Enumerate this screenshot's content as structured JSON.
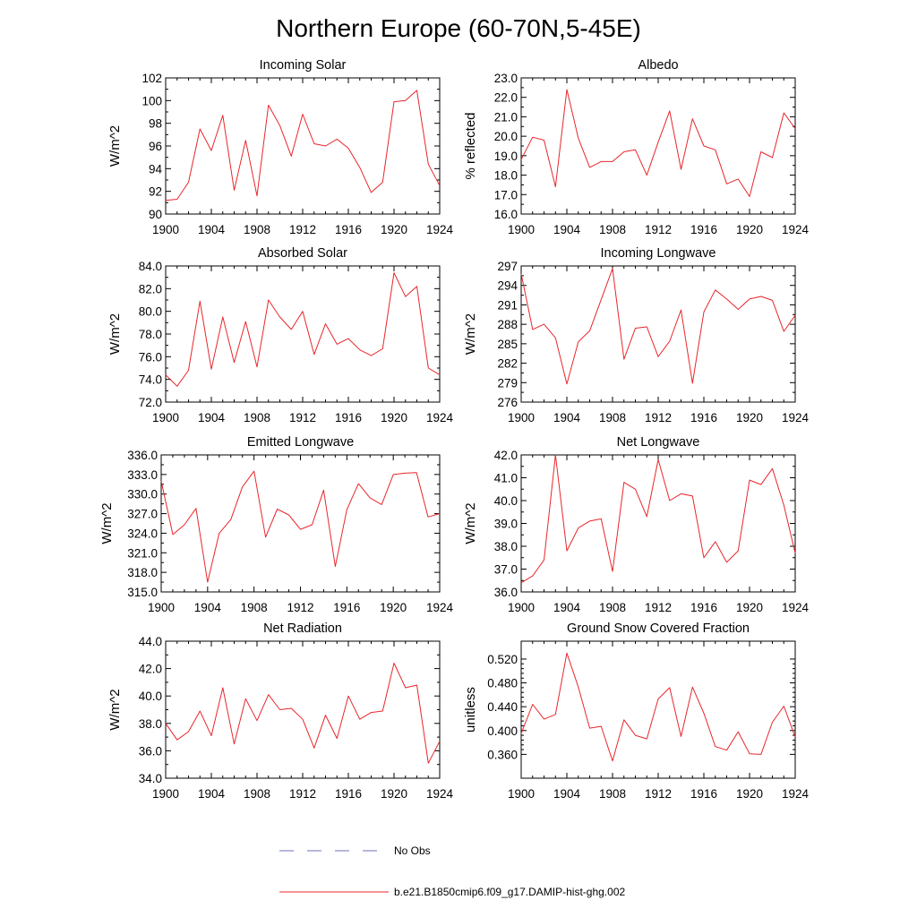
{
  "title": "Northern Europe (60-70N,5-45E)",
  "colors": {
    "model": "#e8262b",
    "obs": "#6b70b8",
    "axis": "#000000"
  },
  "legend": [
    {
      "label": "No Obs",
      "style": "dashed",
      "color": "#6b70b8"
    },
    {
      "label": "b.e21.B1850cmip6.f09_g17.DAMIP-hist-ghg.002",
      "style": "solid",
      "color": "#e8262b"
    }
  ],
  "chart_data": [
    {
      "type": "line",
      "title": "Incoming Solar",
      "ylabel": "W/m^2",
      "ylim": [
        90,
        102
      ],
      "yticks": [
        "90",
        "92",
        "94",
        "96",
        "98",
        "100",
        "102"
      ],
      "xlim": [
        1900,
        1924
      ],
      "xticks": [
        "1900",
        "1904",
        "1908",
        "1912",
        "1916",
        "1920",
        "1924"
      ],
      "x": [
        1900,
        1901,
        1902,
        1903,
        1904,
        1905,
        1906,
        1907,
        1908,
        1909,
        1910,
        1911,
        1912,
        1913,
        1914,
        1915,
        1916,
        1917,
        1918,
        1919,
        1920,
        1921,
        1922,
        1923,
        1924
      ],
      "series": [
        {
          "values": [
            91.2,
            91.3,
            92.8,
            97.5,
            95.6,
            98.7,
            92.1,
            96.5,
            91.6,
            99.6,
            97.8,
            95.1,
            98.8,
            96.2,
            96.0,
            96.6,
            95.8,
            94.1,
            91.9,
            92.8,
            99.9,
            100.0,
            100.9,
            94.4,
            92.5
          ]
        }
      ]
    },
    {
      "type": "line",
      "title": "Albedo",
      "ylabel": "% reflected",
      "ylim": [
        16,
        23
      ],
      "yticks": [
        "16.0",
        "17.0",
        "18.0",
        "19.0",
        "20.0",
        "21.0",
        "22.0",
        "23.0"
      ],
      "xlim": [
        1900,
        1924
      ],
      "xticks": [
        "1900",
        "1904",
        "1908",
        "1912",
        "1916",
        "1920",
        "1924"
      ],
      "x": [
        1900,
        1901,
        1902,
        1903,
        1904,
        1905,
        1906,
        1907,
        1908,
        1909,
        1910,
        1911,
        1912,
        1913,
        1914,
        1915,
        1916,
        1917,
        1918,
        1919,
        1920,
        1921,
        1922,
        1923,
        1924
      ],
      "series": [
        {
          "values": [
            18.8,
            19.95,
            19.8,
            17.4,
            22.4,
            19.9,
            18.4,
            18.7,
            18.7,
            19.2,
            19.3,
            18.0,
            19.7,
            21.3,
            18.3,
            20.9,
            19.5,
            19.3,
            17.55,
            17.8,
            16.9,
            19.2,
            18.9,
            21.2,
            20.4
          ]
        }
      ]
    },
    {
      "type": "line",
      "title": "Absorbed Solar",
      "ylabel": "W/m^2",
      "ylim": [
        72,
        84
      ],
      "yticks": [
        "72.0",
        "74.0",
        "76.0",
        "78.0",
        "80.0",
        "82.0",
        "84.0"
      ],
      "xlim": [
        1900,
        1924
      ],
      "xticks": [
        "1900",
        "1904",
        "1908",
        "1912",
        "1916",
        "1920",
        "1924"
      ],
      "x": [
        1900,
        1901,
        1902,
        1903,
        1904,
        1905,
        1906,
        1907,
        1908,
        1909,
        1910,
        1911,
        1912,
        1913,
        1914,
        1915,
        1916,
        1917,
        1918,
        1919,
        1920,
        1921,
        1922,
        1923,
        1924
      ],
      "series": [
        {
          "values": [
            74.4,
            73.4,
            74.8,
            80.9,
            74.9,
            79.5,
            75.5,
            79.1,
            75.1,
            81.0,
            79.5,
            78.4,
            80.0,
            76.2,
            78.9,
            77.1,
            77.6,
            76.6,
            76.1,
            76.7,
            83.4,
            81.3,
            82.2,
            75.0,
            74.4
          ]
        }
      ]
    },
    {
      "type": "line",
      "title": "Incoming Longwave",
      "ylabel": "W/m^2",
      "ylim": [
        276,
        297
      ],
      "yticks": [
        "276",
        "279",
        "282",
        "285",
        "288",
        "291",
        "294",
        "297"
      ],
      "xlim": [
        1900,
        1924
      ],
      "xticks": [
        "1900",
        "1904",
        "1908",
        "1912",
        "1916",
        "1920",
        "1924"
      ],
      "x": [
        1900,
        1901,
        1902,
        1903,
        1904,
        1905,
        1906,
        1907,
        1908,
        1909,
        1910,
        1911,
        1912,
        1913,
        1914,
        1915,
        1916,
        1917,
        1918,
        1919,
        1920,
        1921,
        1922,
        1923,
        1924
      ],
      "series": [
        {
          "values": [
            295.8,
            287.2,
            288.0,
            285.9,
            278.8,
            285.3,
            287.0,
            291.8,
            296.6,
            282.6,
            287.4,
            287.6,
            283.0,
            285.4,
            290.2,
            278.9,
            289.9,
            293.3,
            291.9,
            290.3,
            291.9,
            292.3,
            291.7,
            286.9,
            289.4
          ]
        }
      ]
    },
    {
      "type": "line",
      "title": "Emitted Longwave",
      "ylabel": "W/m^2",
      "ylim": [
        315,
        336
      ],
      "yticks": [
        "315.0",
        "318.0",
        "321.0",
        "324.0",
        "327.0",
        "330.0",
        "333.0",
        "336.0"
      ],
      "xlim": [
        1900,
        1924
      ],
      "xticks": [
        "1900",
        "1904",
        "1908",
        "1912",
        "1916",
        "1920",
        "1924"
      ],
      "x": [
        1900,
        1901,
        1902,
        1903,
        1904,
        1905,
        1906,
        1907,
        1908,
        1909,
        1910,
        1911,
        1912,
        1913,
        1914,
        1915,
        1916,
        1917,
        1918,
        1919,
        1920,
        1921,
        1922,
        1923,
        1924
      ],
      "series": [
        {
          "values": [
            332.0,
            323.8,
            325.3,
            327.8,
            316.5,
            324.0,
            326.1,
            331.1,
            333.5,
            323.4,
            327.7,
            326.8,
            324.6,
            325.3,
            330.6,
            318.9,
            327.6,
            331.6,
            329.4,
            328.4,
            333.0,
            333.2,
            333.3,
            326.5,
            327.0
          ]
        }
      ]
    },
    {
      "type": "line",
      "title": "Net Longwave",
      "ylabel": "W/m^2",
      "ylim": [
        36,
        42
      ],
      "yticks": [
        "36.0",
        "37.0",
        "38.0",
        "39.0",
        "40.0",
        "41.0",
        "42.0"
      ],
      "xlim": [
        1900,
        1924
      ],
      "xticks": [
        "1900",
        "1904",
        "1908",
        "1912",
        "1916",
        "1920",
        "1924"
      ],
      "x": [
        1900,
        1901,
        1902,
        1903,
        1904,
        1905,
        1906,
        1907,
        1908,
        1909,
        1910,
        1911,
        1912,
        1913,
        1914,
        1915,
        1916,
        1917,
        1918,
        1919,
        1920,
        1921,
        1922,
        1923,
        1924
      ],
      "series": [
        {
          "values": [
            36.4,
            36.7,
            37.4,
            42.0,
            37.8,
            38.8,
            39.1,
            39.2,
            36.9,
            40.8,
            40.5,
            39.3,
            41.8,
            40.0,
            40.3,
            40.2,
            37.5,
            38.2,
            37.3,
            37.8,
            40.9,
            40.7,
            41.4,
            39.8,
            37.7
          ]
        }
      ]
    },
    {
      "type": "line",
      "title": "Net Radiation",
      "ylabel": "W/m^2",
      "ylim": [
        34,
        44
      ],
      "yticks": [
        "34.0",
        "36.0",
        "38.0",
        "40.0",
        "42.0",
        "44.0"
      ],
      "xlim": [
        1900,
        1924
      ],
      "xticks": [
        "1900",
        "1904",
        "1908",
        "1912",
        "1916",
        "1920",
        "1924"
      ],
      "x": [
        1900,
        1901,
        1902,
        1903,
        1904,
        1905,
        1906,
        1907,
        1908,
        1909,
        1910,
        1911,
        1912,
        1913,
        1914,
        1915,
        1916,
        1917,
        1918,
        1919,
        1920,
        1921,
        1922,
        1923,
        1924
      ],
      "series": [
        {
          "values": [
            38.0,
            36.8,
            37.4,
            38.9,
            37.1,
            40.6,
            36.5,
            39.8,
            38.2,
            40.1,
            39.0,
            39.1,
            38.3,
            36.2,
            38.6,
            36.9,
            40.0,
            38.3,
            38.8,
            38.9,
            42.4,
            40.6,
            40.8,
            35.1,
            36.7
          ]
        }
      ]
    },
    {
      "type": "line",
      "title": "Ground Snow Covered Fraction",
      "ylabel": "unitless",
      "ylim": [
        0.32,
        0.55
      ],
      "yticks": [
        "0.360",
        "0.400",
        "0.440",
        "0.480",
        "0.520"
      ],
      "ytick_values": [
        0.36,
        0.4,
        0.44,
        0.48,
        0.52
      ],
      "xlim": [
        1900,
        1924
      ],
      "xticks": [
        "1900",
        "1904",
        "1908",
        "1912",
        "1916",
        "1920",
        "1924"
      ],
      "x": [
        1900,
        1901,
        1902,
        1903,
        1904,
        1905,
        1906,
        1907,
        1908,
        1909,
        1910,
        1911,
        1912,
        1913,
        1914,
        1915,
        1916,
        1917,
        1918,
        1919,
        1920,
        1921,
        1922,
        1923,
        1924
      ],
      "series": [
        {
          "values": [
            0.395,
            0.444,
            0.419,
            0.427,
            0.53,
            0.473,
            0.404,
            0.407,
            0.349,
            0.418,
            0.392,
            0.386,
            0.453,
            0.472,
            0.39,
            0.473,
            0.429,
            0.373,
            0.367,
            0.398,
            0.361,
            0.36,
            0.414,
            0.441,
            0.389
          ]
        }
      ]
    }
  ]
}
